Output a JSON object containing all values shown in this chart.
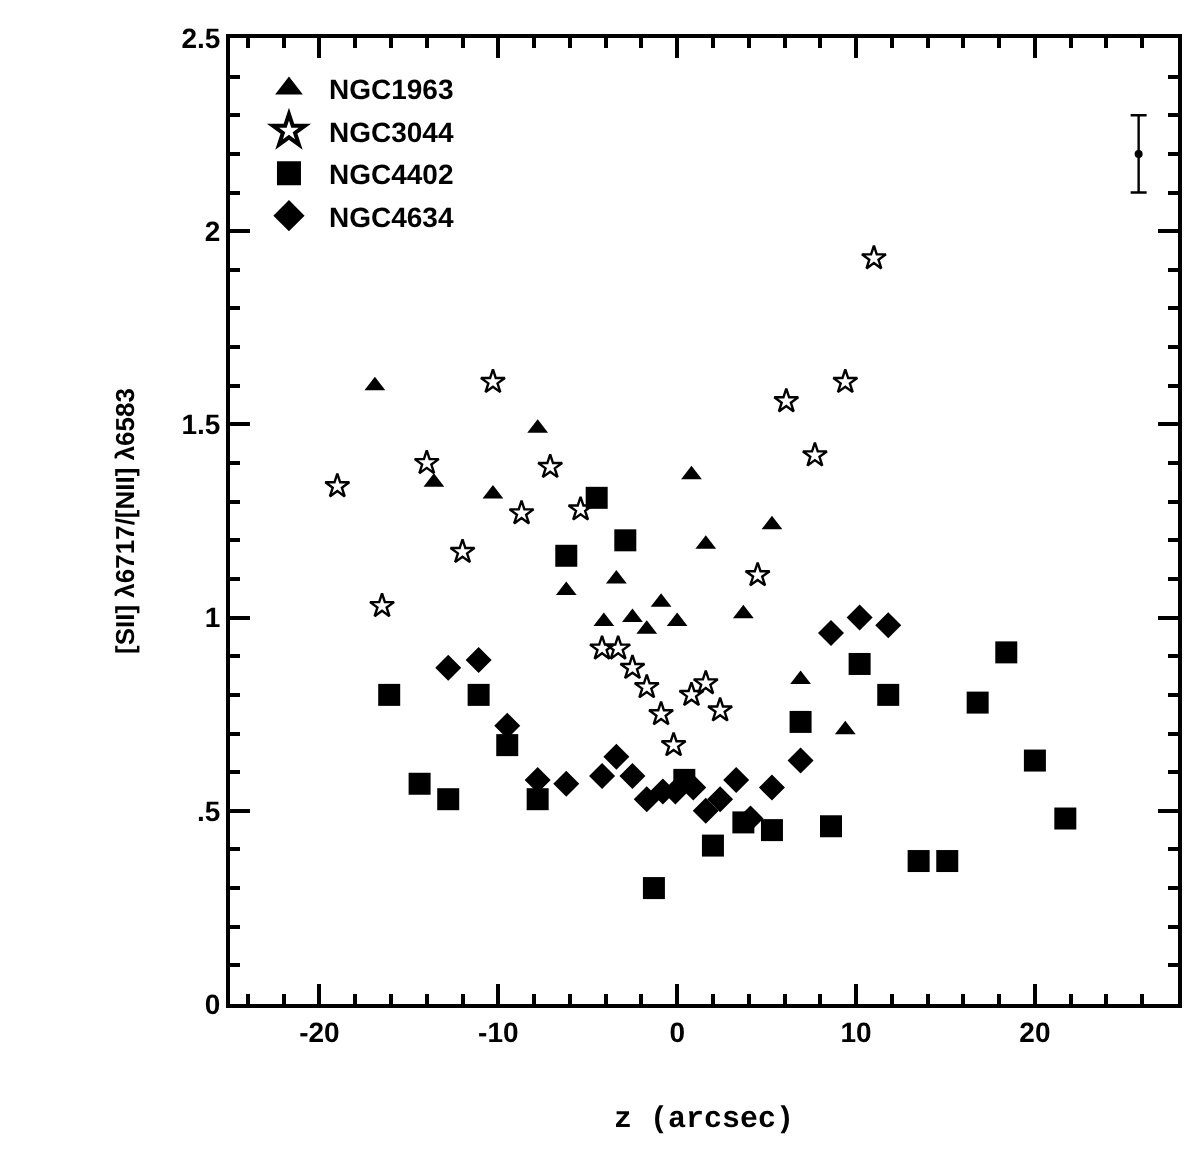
{
  "chart_data": {
    "type": "scatter",
    "xlabel": "z (arcsec)",
    "ylabel": "[SII] λ6717/[NII] λ6583",
    "xlim": [
      -25,
      28
    ],
    "ylim": [
      0,
      2.5
    ],
    "xticks": [
      -20,
      -10,
      0,
      10,
      20,
      {
        "value": -24,
        "label": null
      },
      {
        "value": -22,
        "label": null
      },
      {
        "value": -18,
        "label": null
      },
      {
        "value": -16,
        "label": null
      },
      {
        "value": -14,
        "label": null
      },
      {
        "value": -12,
        "label": null
      },
      {
        "value": -8,
        "label": null
      },
      {
        "value": -6,
        "label": null
      },
      {
        "value": -4,
        "label": null
      },
      {
        "value": -2,
        "label": null
      },
      {
        "value": 2,
        "label": null
      },
      {
        "value": 4,
        "label": null
      },
      {
        "value": 6,
        "label": null
      },
      {
        "value": 8,
        "label": null
      },
      {
        "value": 12,
        "label": null
      },
      {
        "value": 14,
        "label": null
      },
      {
        "value": 16,
        "label": null
      },
      {
        "value": 18,
        "label": null
      },
      {
        "value": 22,
        "label": null
      },
      {
        "value": 24,
        "label": null
      },
      {
        "value": 26,
        "label": null
      }
    ],
    "yticks": [
      0,
      {
        "value": 0.5,
        "label": ".5"
      },
      1,
      1.5,
      2,
      2.5,
      {
        "value": 0.1,
        "label": null
      },
      {
        "value": 0.2,
        "label": null
      },
      {
        "value": 0.3,
        "label": null
      },
      {
        "value": 0.4,
        "label": null
      },
      {
        "value": 0.6,
        "label": null
      },
      {
        "value": 0.7,
        "label": null
      },
      {
        "value": 0.8,
        "label": null
      },
      {
        "value": 0.9,
        "label": null
      },
      {
        "value": 1.1,
        "label": null
      },
      {
        "value": 1.2,
        "label": null
      },
      {
        "value": 1.3,
        "label": null
      },
      {
        "value": 1.4,
        "label": null
      },
      {
        "value": 1.6,
        "label": null
      },
      {
        "value": 1.7,
        "label": null
      },
      {
        "value": 1.8,
        "label": null
      },
      {
        "value": 1.9,
        "label": null
      },
      {
        "value": 2.1,
        "label": null
      },
      {
        "value": 2.2,
        "label": null
      },
      {
        "value": 2.3,
        "label": null
      },
      {
        "value": 2.4,
        "label": null
      }
    ],
    "legend": "top left",
    "series": [
      {
        "name": "NGC1963",
        "color": "#000000",
        "marker": "triangle",
        "x": [
          -16.9,
          -13.6,
          -10.3,
          -7.8,
          -6.2,
          -4.1,
          -3.4,
          -2.5,
          -1.7,
          -0.9,
          0.0,
          0.8,
          1.6,
          3.7,
          5.3,
          6.9,
          9.4
        ],
        "values": [
          1.6,
          1.35,
          1.32,
          1.49,
          1.07,
          0.99,
          1.1,
          1.0,
          0.97,
          1.04,
          0.99,
          1.37,
          1.19,
          1.01,
          1.24,
          0.84,
          0.71
        ]
      },
      {
        "name": "NGC3044",
        "color": "#000000",
        "marker": "star",
        "x": [
          -19.0,
          -16.5,
          -14.0,
          -12.0,
          -10.3,
          -8.7,
          -7.1,
          -5.4,
          -4.2,
          -3.3,
          -2.5,
          -1.7,
          -0.9,
          -0.2,
          0.8,
          1.6,
          2.4,
          4.5,
          6.1,
          7.7,
          9.4,
          11.0
        ],
        "values": [
          1.34,
          1.03,
          1.4,
          1.17,
          1.61,
          1.27,
          1.39,
          1.28,
          0.92,
          0.92,
          0.87,
          0.82,
          0.75,
          0.67,
          0.8,
          0.83,
          0.76,
          1.11,
          1.56,
          1.42,
          1.61,
          1.93
        ]
      },
      {
        "name": "NGC4402",
        "color": "#000000",
        "marker": "square",
        "x": [
          -16.1,
          -14.4,
          -12.8,
          -11.1,
          -9.5,
          -7.8,
          -6.2,
          -4.5,
          -2.9,
          -1.3,
          0.4,
          2.0,
          3.7,
          5.3,
          6.9,
          8.6,
          10.2,
          11.8,
          13.5,
          15.1,
          16.8,
          18.4,
          20.0,
          21.7
        ],
        "values": [
          0.8,
          0.57,
          0.53,
          0.8,
          0.67,
          0.53,
          1.16,
          1.31,
          1.2,
          0.3,
          0.58,
          0.41,
          0.47,
          0.45,
          0.73,
          0.46,
          0.88,
          0.8,
          0.37,
          0.37,
          0.78,
          0.91,
          0.63,
          0.48
        ]
      },
      {
        "name": "NGC4634",
        "color": "#000000",
        "marker": "diamond",
        "x": [
          -12.8,
          -11.1,
          -9.5,
          -7.8,
          -6.2,
          -4.2,
          -3.4,
          -2.5,
          -1.7,
          -0.8,
          -0.1,
          0.9,
          1.6,
          2.4,
          3.3,
          4.1,
          5.3,
          6.9,
          8.6,
          10.2,
          11.8
        ],
        "values": [
          0.87,
          0.89,
          0.72,
          0.58,
          0.57,
          0.59,
          0.64,
          0.59,
          0.53,
          0.55,
          0.55,
          0.56,
          0.5,
          0.53,
          0.58,
          0.48,
          0.56,
          0.63,
          0.96,
          1.0,
          0.98
        ]
      },
      {
        "color": "#000000",
        "x": [
          25.8
        ],
        "values": [
          2.2
        ],
        "errors": [
          0.1
        ]
      }
    ]
  }
}
